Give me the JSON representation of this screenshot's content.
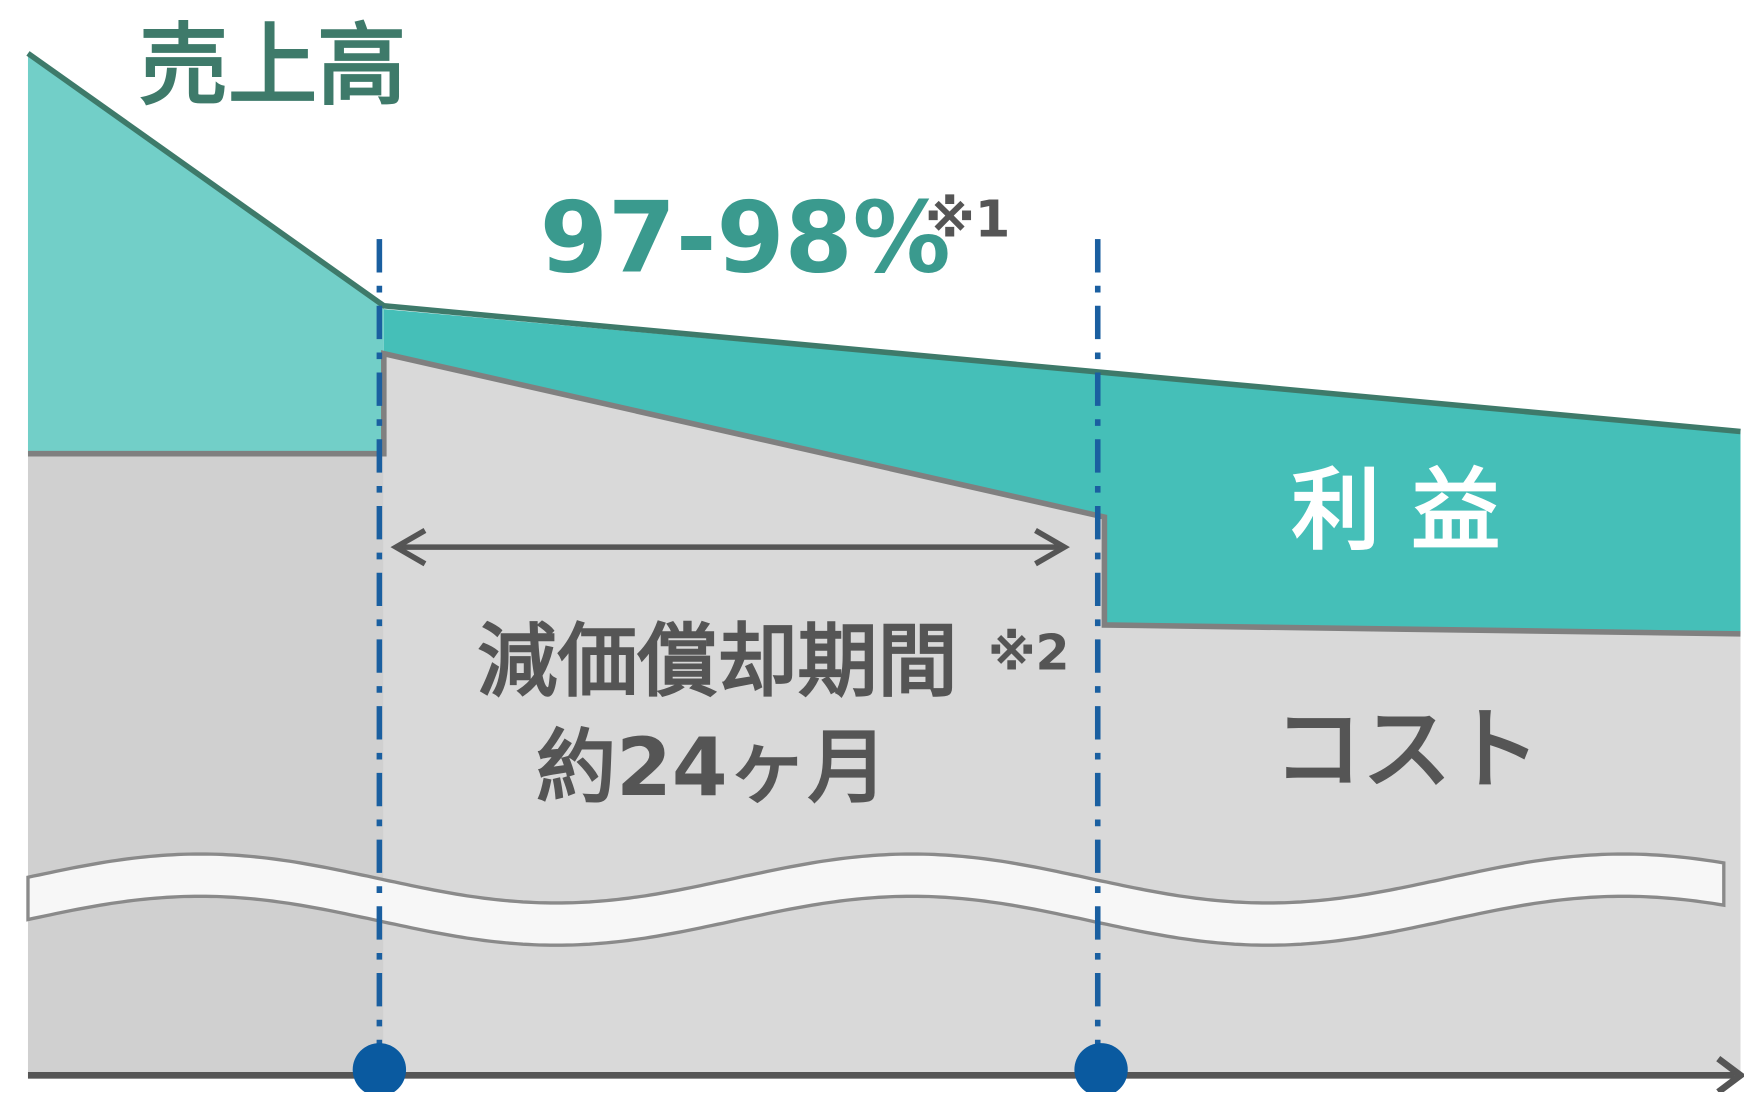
{
  "labels": {
    "revenue": "売上高",
    "ratio": "97-98%",
    "note1": "※1",
    "profit": "利 益",
    "period": "減価償却期間",
    "note2": "※2",
    "duration": "約24ヶ月",
    "cost": "コスト"
  }
}
